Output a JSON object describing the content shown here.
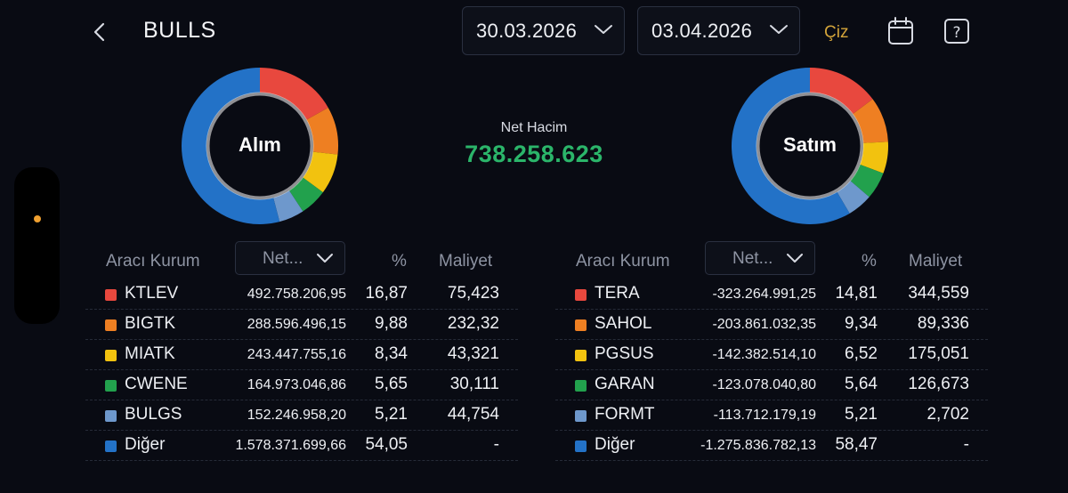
{
  "header": {
    "title": "BULLS",
    "date_start": "30.03.2026",
    "date_end": "03.04.2026",
    "draw_label": "Çiz"
  },
  "center": {
    "net_title": "Net Hacim",
    "net_value": "738.258.623"
  },
  "colors": {
    "red": "#e8483e",
    "orange": "#ee7f22",
    "yellow": "#f2c20f",
    "green": "#22a14d",
    "lightblue": "#6e98cc",
    "blue": "#2372c7",
    "net_positive": "#2bb56a",
    "accent": "#d3a43a"
  },
  "buy": {
    "donut_label": "Alım",
    "header_broker": "Aracı Kurum",
    "header_select": "Net...",
    "header_pct": "%",
    "header_cost": "Maliyet",
    "rows": [
      {
        "name": "KTLEV",
        "net": "492.758.206,95",
        "pct": "16,87",
        "pct_value": 16.87,
        "cost": "75,423",
        "color": "#e8483e"
      },
      {
        "name": "BIGTK",
        "net": "288.596.496,15",
        "pct": "9,88",
        "pct_value": 9.88,
        "cost": "232,32",
        "color": "#ee7f22"
      },
      {
        "name": "MIATK",
        "net": "243.447.755,16",
        "pct": "8,34",
        "pct_value": 8.34,
        "cost": "43,321",
        "color": "#f2c20f"
      },
      {
        "name": "CWENE",
        "net": "164.973.046,86",
        "pct": "5,65",
        "pct_value": 5.65,
        "cost": "30,111",
        "color": "#22a14d"
      },
      {
        "name": "BULGS",
        "net": "152.246.958,20",
        "pct": "5,21",
        "pct_value": 5.21,
        "cost": "44,754",
        "color": "#6e98cc"
      },
      {
        "name": "Diğer",
        "net": "1.578.371.699,66",
        "pct": "54,05",
        "pct_value": 54.05,
        "cost": "-",
        "color": "#2372c7"
      }
    ]
  },
  "sell": {
    "donut_label": "Satım",
    "header_broker": "Aracı Kurum",
    "header_select": "Net...",
    "header_pct": "%",
    "header_cost": "Maliyet",
    "rows": [
      {
        "name": "TERA",
        "net": "-323.264.991,25",
        "pct": "14,81",
        "pct_value": 14.81,
        "cost": "344,559",
        "color": "#e8483e"
      },
      {
        "name": "SAHOL",
        "net": "-203.861.032,35",
        "pct": "9,34",
        "pct_value": 9.34,
        "cost": "89,336",
        "color": "#ee7f22"
      },
      {
        "name": "PGSUS",
        "net": "-142.382.514,10",
        "pct": "6,52",
        "pct_value": 6.52,
        "cost": "175,051",
        "color": "#f2c20f"
      },
      {
        "name": "GARAN",
        "net": "-123.078.040,80",
        "pct": "5,64",
        "pct_value": 5.64,
        "cost": "126,673",
        "color": "#22a14d"
      },
      {
        "name": "FORMT",
        "net": "-113.712.179,19",
        "pct": "5,21",
        "pct_value": 5.21,
        "cost": "2,702",
        "color": "#6e98cc"
      },
      {
        "name": "Diğer",
        "net": "-1.275.836.782,13",
        "pct": "58,47",
        "pct_value": 58.47,
        "cost": "-",
        "color": "#2372c7"
      }
    ]
  },
  "icons": {
    "back": "chevron-left-icon",
    "dropdown": "chevron-down-icon",
    "calendar": "calendar-icon",
    "help": "question-icon"
  }
}
